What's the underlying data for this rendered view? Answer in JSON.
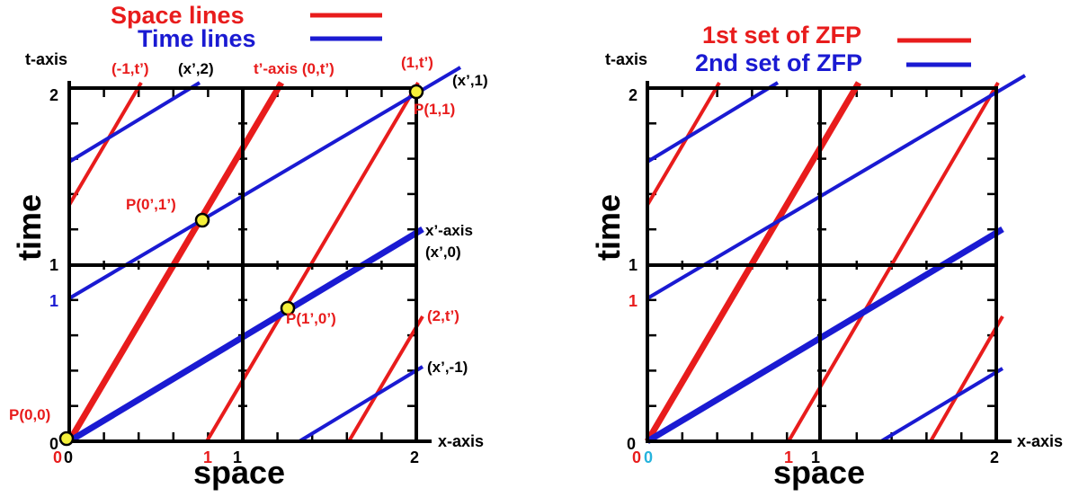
{
  "colors": {
    "red": "#e81c1c",
    "blue": "#1a1ad2",
    "black": "#000000",
    "cyan": "#26b3dd",
    "marker_fill": "#f5f03a"
  },
  "left": {
    "legend": {
      "red_label": "Space lines",
      "blue_label": "Time lines"
    },
    "t_axis_label": "t-axis",
    "time_label": "time",
    "space_label": "space",
    "x_axis_label": "x-axis",
    "y_ticks": {
      "two": "2",
      "one": "1",
      "zero": "0",
      "blue_one": "1"
    },
    "x_ticks": {
      "red_zero": "0",
      "zero": "0",
      "red_one": "1",
      "one": "1",
      "two": "2"
    },
    "line_labels": {
      "minus1_t": "(-1,t’)",
      "x_2": "(x’,2)",
      "t_prime_axis": "t’-axis (0,t’)",
      "one_t": "(1,t’)",
      "x_1": "(x’,1)",
      "x_prime_axis": "x’-axis",
      "x_0": "(x’,0)",
      "two_t": "(2,t’)",
      "x_minus1": "(x’,-1)"
    },
    "points": {
      "p11": "P(1,1)",
      "p0p1p": "P(0’,1’)",
      "p1p0p": "P(1’,0’)",
      "p00": "P(0,0)"
    }
  },
  "right": {
    "legend": {
      "red_label": "1st set of ZFP",
      "blue_label": "2nd set of ZFP"
    },
    "t_axis_label": "t-axis",
    "time_label": "time",
    "space_label": "space",
    "x_axis_label": "x-axis",
    "y_ticks": {
      "two": "2",
      "one": "1",
      "zero": "0",
      "red_one": "1"
    },
    "x_ticks": {
      "red_zero": "0",
      "cyan_zero": "0",
      "red_one": "1",
      "one": "1",
      "two": "2"
    }
  }
}
